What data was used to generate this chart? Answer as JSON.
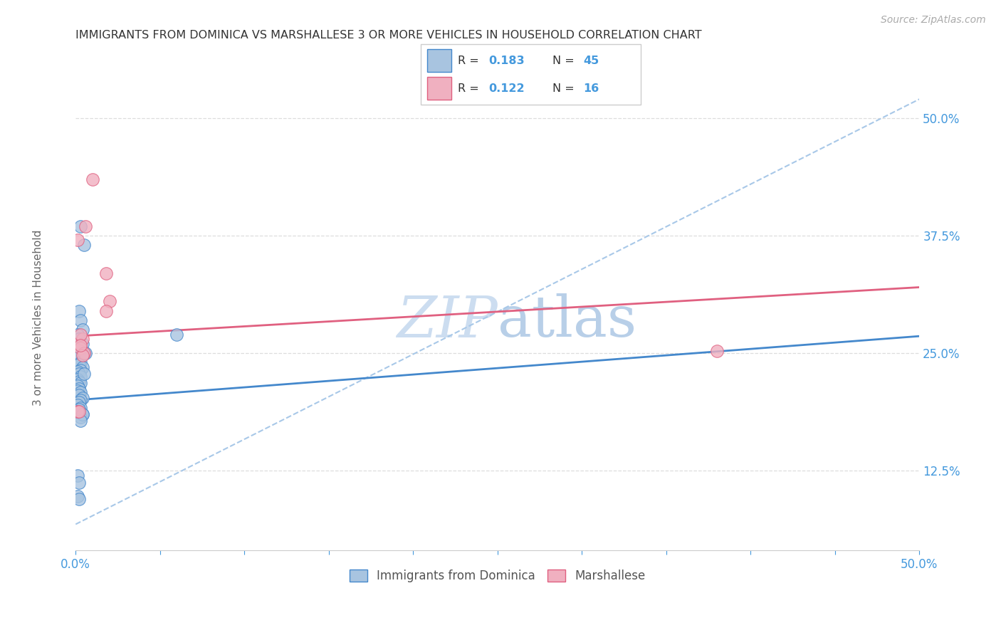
{
  "title": "IMMIGRANTS FROM DOMINICA VS MARSHALLESE 3 OR MORE VEHICLES IN HOUSEHOLD CORRELATION CHART",
  "source": "Source: ZipAtlas.com",
  "ylabel": "3 or more Vehicles in Household",
  "ytick_vals": [
    0.125,
    0.25,
    0.375,
    0.5
  ],
  "xmin": 0.0,
  "xmax": 0.5,
  "ymin": 0.04,
  "ymax": 0.57,
  "blue_color": "#a8c4e0",
  "pink_color": "#f0b0c0",
  "blue_line_color": "#4488cc",
  "pink_line_color": "#e06080",
  "dashed_line_color": "#a8c8e8",
  "axis_label_color": "#4499dd",
  "watermark_color": "#ccddf0",
  "source_color": "#aaaaaa",
  "title_color": "#333333",
  "grid_color": "#dddddd",
  "bottom_spine_color": "#cccccc",
  "blue_scatter_x": [
    0.003,
    0.005,
    0.002,
    0.003,
    0.004,
    0.001,
    0.002,
    0.004,
    0.003,
    0.005,
    0.002,
    0.001,
    0.003,
    0.002,
    0.004,
    0.003,
    0.001,
    0.002,
    0.003,
    0.001,
    0.002,
    0.003,
    0.001,
    0.002,
    0.001,
    0.003,
    0.002,
    0.004,
    0.003,
    0.002,
    0.001,
    0.003,
    0.002,
    0.001,
    0.004,
    0.003,
    0.006,
    0.005,
    0.004,
    0.003,
    0.001,
    0.002,
    0.001,
    0.002,
    0.06
  ],
  "blue_scatter_y": [
    0.385,
    0.365,
    0.295,
    0.285,
    0.275,
    0.27,
    0.265,
    0.26,
    0.255,
    0.25,
    0.248,
    0.245,
    0.24,
    0.238,
    0.235,
    0.232,
    0.23,
    0.228,
    0.225,
    0.222,
    0.22,
    0.218,
    0.215,
    0.212,
    0.21,
    0.208,
    0.205,
    0.202,
    0.2,
    0.198,
    0.195,
    0.192,
    0.19,
    0.188,
    0.185,
    0.182,
    0.25,
    0.228,
    0.185,
    0.178,
    0.12,
    0.112,
    0.098,
    0.095,
    0.27
  ],
  "pink_scatter_x": [
    0.01,
    0.001,
    0.001,
    0.018,
    0.02,
    0.018,
    0.004,
    0.003,
    0.005,
    0.004,
    0.001,
    0.006,
    0.003,
    0.003,
    0.38,
    0.002
  ],
  "pink_scatter_y": [
    0.435,
    0.37,
    0.26,
    0.335,
    0.305,
    0.295,
    0.265,
    0.255,
    0.25,
    0.248,
    0.188,
    0.385,
    0.27,
    0.258,
    0.252,
    0.188
  ],
  "blue_trend_x": [
    0.0,
    0.5
  ],
  "blue_trend_y": [
    0.2,
    0.268
  ],
  "pink_trend_x": [
    0.0,
    0.5
  ],
  "pink_trend_y": [
    0.268,
    0.32
  ],
  "dashed_trend_x": [
    0.0,
    0.5
  ],
  "dashed_trend_y": [
    0.068,
    0.52
  ]
}
